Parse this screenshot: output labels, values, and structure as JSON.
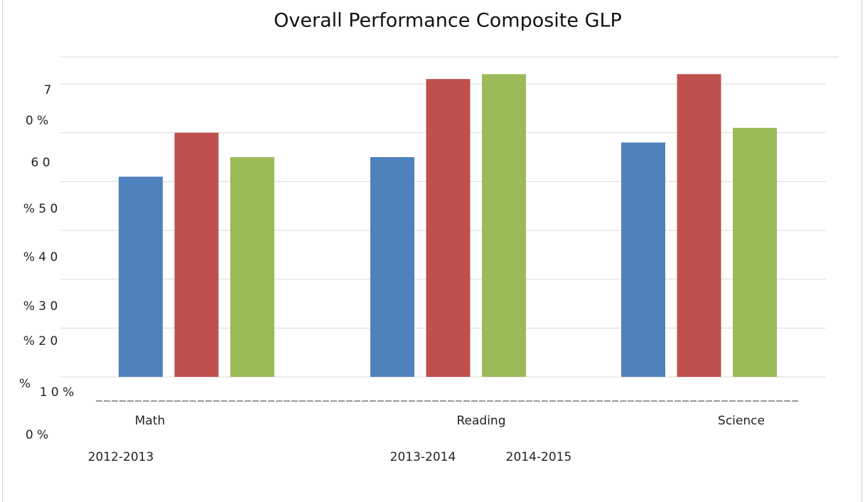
{
  "chart_data": {
    "type": "bar",
    "title": "Overall Performance Composite GLP",
    "categories": [
      "Math",
      "Reading",
      "Science"
    ],
    "series": [
      {
        "name": "2012-2013",
        "color": "#4f81bd",
        "values": [
          41,
          45,
          48
        ]
      },
      {
        "name": "2013-2014",
        "color": "#c0504d",
        "values": [
          50,
          61,
          62
        ]
      },
      {
        "name": "2014-2015",
        "color": "#9bbb59",
        "values": [
          45,
          62,
          51
        ]
      }
    ],
    "ylim": [
      0,
      60
    ],
    "yticks": [
      0,
      10,
      20,
      30,
      40,
      50,
      60
    ],
    "y_axis_labels": [
      "7",
      "0 %",
      "6 0",
      "% 5 0",
      "% 4 0",
      "% 3 0",
      "% 2 0",
      "%",
      "1 0 %",
      "0 %"
    ],
    "grid": true
  }
}
